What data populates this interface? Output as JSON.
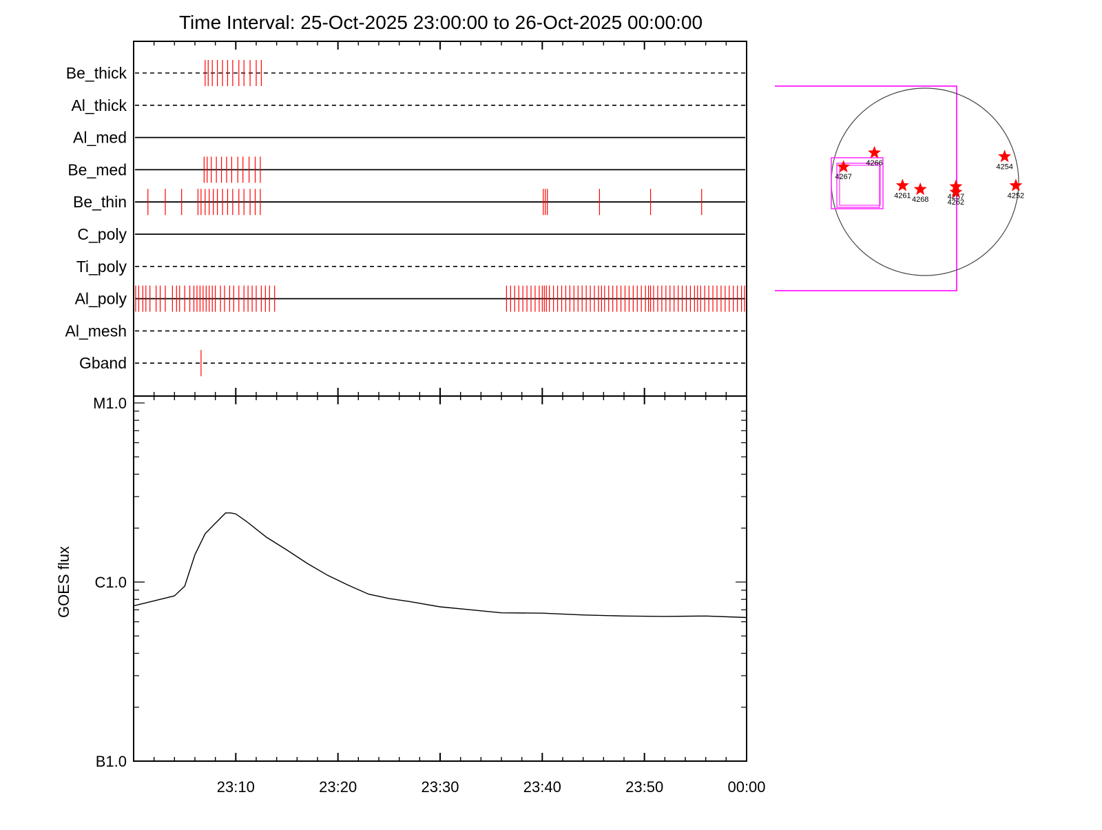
{
  "chart_data": {
    "type": "line",
    "title": "Time Interval: 25-Oct-2025 23:00:00 to 26-Oct-2025 00:00:00",
    "time_range": [
      "23:00",
      "00:00"
    ],
    "x_ticks": [
      {
        "label": "23:10",
        "minute": 10
      },
      {
        "label": "23:20",
        "minute": 20
      },
      {
        "label": "23:30",
        "minute": 30
      },
      {
        "label": "23:40",
        "minute": 40
      },
      {
        "label": "23:50",
        "minute": 50
      },
      {
        "label": "00:00",
        "minute": 60
      }
    ],
    "filters": [
      {
        "name": "Be_thick",
        "line": "dashed",
        "events": [
          7.0,
          7.3,
          7.7,
          8.2,
          8.7,
          9.2,
          9.7,
          10.3,
          10.8,
          11.4,
          12.0,
          12.5
        ]
      },
      {
        "name": "Al_thick",
        "line": "dashed",
        "events": []
      },
      {
        "name": "Al_med",
        "line": "solid",
        "events": []
      },
      {
        "name": "Be_med",
        "line": "solid",
        "events": [
          6.9,
          7.2,
          7.6,
          8.1,
          8.6,
          9.1,
          9.6,
          10.2,
          10.7,
          11.3,
          11.9,
          12.4
        ]
      },
      {
        "name": "Be_thin",
        "line": "solid",
        "events": [
          1.4,
          3.1,
          4.7,
          6.3,
          6.6,
          7.0,
          7.4,
          7.8,
          8.2,
          8.7,
          9.2,
          9.7,
          10.3,
          10.8,
          11.4,
          11.9,
          12.4,
          40.1,
          40.3,
          40.5,
          45.6,
          50.6,
          55.6
        ]
      },
      {
        "name": "C_poly",
        "line": "solid",
        "events": []
      },
      {
        "name": "Ti_poly",
        "line": "dashed",
        "events": []
      },
      {
        "name": "Al_poly",
        "line": "solid",
        "events": [
          0.2,
          0.5,
          0.9,
          1.2,
          1.6,
          2.2,
          2.6,
          3.1,
          3.8,
          4.2,
          4.5,
          5.0,
          5.5,
          5.9,
          6.2,
          6.5,
          6.8,
          7.1,
          7.4,
          7.7,
          8.0,
          8.5,
          8.9,
          9.4,
          9.8,
          10.3,
          10.8,
          11.2,
          11.6,
          12.0,
          12.5,
          12.9,
          13.3,
          13.8,
          36.5,
          36.9,
          37.3,
          37.7,
          38.1,
          38.5,
          38.9,
          39.3,
          39.7,
          40.0,
          40.2,
          40.4,
          40.7,
          41.1,
          41.5,
          41.9,
          42.3,
          42.7,
          43.1,
          43.5,
          43.9,
          44.3,
          44.7,
          45.1,
          45.5,
          45.8,
          46.1,
          46.5,
          46.9,
          47.3,
          47.7,
          48.1,
          48.5,
          48.9,
          49.3,
          49.7,
          50.1,
          50.4,
          50.6,
          50.9,
          51.3,
          51.7,
          52.1,
          52.5,
          52.9,
          53.3,
          53.7,
          54.1,
          54.5,
          54.9,
          55.2,
          55.5,
          55.9,
          56.3,
          56.7,
          57.1,
          57.5,
          57.9,
          58.3,
          58.7,
          59.1,
          59.5,
          59.8
        ]
      },
      {
        "name": "Al_mesh",
        "line": "dashed",
        "events": []
      },
      {
        "name": "Gband",
        "line": "dashed",
        "events": [
          6.6
        ]
      }
    ],
    "goes": {
      "ylabel": "GOES flux",
      "yscale": "log",
      "ylim": [
        1e-07,
        1e-05
      ],
      "y_ticks": [
        {
          "label": "M1.0",
          "value": 1e-05
        },
        {
          "label": "C1.0",
          "value": 1e-06
        },
        {
          "label": "B1.0",
          "value": 1e-07
        }
      ],
      "series": [
        {
          "x": [
            0,
            2,
            4,
            5,
            6,
            7,
            8,
            9,
            9.5,
            10,
            11,
            13,
            15,
            17,
            19,
            21,
            23,
            25,
            27,
            30,
            33,
            36,
            40,
            44,
            48,
            52,
            56,
            60
          ],
          "y": [
            7.36e-07,
            7.85e-07,
            8.37e-07,
            9.48e-07,
            1.42e-06,
            1.86e-06,
            2.13e-06,
            2.43e-06,
            2.43e-06,
            2.4e-06,
            2.19e-06,
            1.78e-06,
            1.51e-06,
            1.27e-06,
            1.09e-06,
            9.61e-07,
            8.56e-07,
            8.09e-07,
            7.78e-07,
            7.27e-07,
            7e-07,
            6.73e-07,
            6.7e-07,
            6.55e-07,
            6.46e-07,
            6.43e-07,
            6.46e-07,
            6.34e-07
          ]
        }
      ]
    },
    "sun_map": {
      "regions": [
        {
          "label": "4266",
          "x": -0.54,
          "y": 0.31
        },
        {
          "label": "4267",
          "x": -0.87,
          "y": 0.16
        },
        {
          "label": "4261",
          "x": -0.24,
          "y": -0.04
        },
        {
          "label": "4268",
          "x": -0.05,
          "y": -0.08
        },
        {
          "label": "4257",
          "x": 0.33,
          "y": -0.05
        },
        {
          "label": "4262",
          "x": 0.33,
          "y": -0.11
        },
        {
          "label": "4254",
          "x": 0.85,
          "y": 0.27
        },
        {
          "label": "4252",
          "x": 0.97,
          "y": -0.04
        }
      ]
    },
    "colors": {
      "events": "#ff0000",
      "fov": "#ff33ff",
      "markers": "#ff0000",
      "lines": "#000000"
    }
  }
}
